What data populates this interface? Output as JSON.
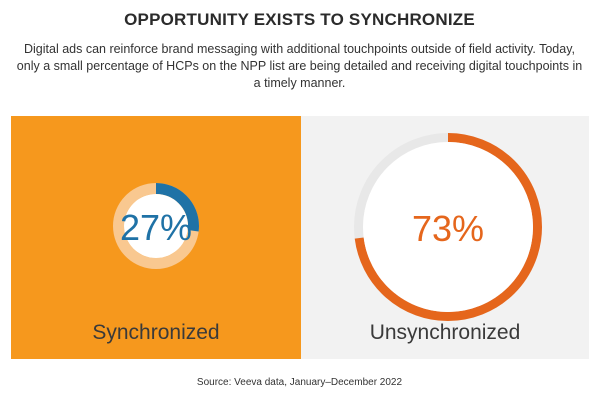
{
  "header": {
    "title": "OPPORTUNITY EXISTS TO SYNCHRONIZE",
    "subtitle": "Digital ads can reinforce brand messaging with additional touchpoints outside of field activity. Today, only a small percentage of HCPs on the NPP list are being detailed and receiving digital touchpoints in a timely manner."
  },
  "chart_data": {
    "type": "pie",
    "categories": [
      "Synchronized",
      "Unsynchronized"
    ],
    "values": [
      27,
      73
    ],
    "value_labels": [
      "27%",
      "73%"
    ],
    "panels": [
      {
        "label": "Synchronized",
        "value": 27,
        "value_label": "27%",
        "panel_color": "#f6981d",
        "arc_color": "#1f72a6",
        "track_color": "#f9c890",
        "text_color": "#1f72a6"
      },
      {
        "label": "Unsynchronized",
        "value": 73,
        "value_label": "73%",
        "panel_color": "#f2f2f2",
        "arc_color": "#e5661c",
        "track_color": "#e8e8e8",
        "text_color": "#e5661c"
      }
    ]
  },
  "footer": {
    "source": "Source: Veeva data, January–December 2022"
  }
}
